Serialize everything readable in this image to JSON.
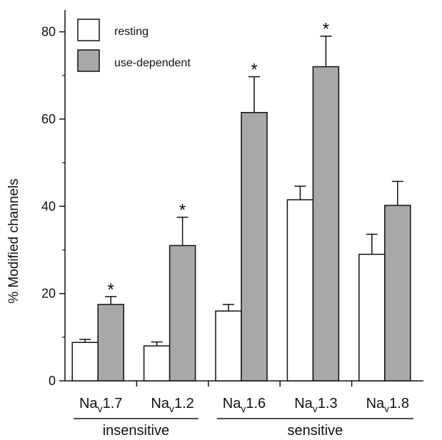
{
  "chart_data": {
    "type": "bar",
    "ylabel": "% Modified channels",
    "ylim": [
      0,
      85
    ],
    "yticks": [
      0,
      20,
      40,
      60,
      80
    ],
    "categories": [
      {
        "main": "Na",
        "sub": "v",
        "rest": "1.7"
      },
      {
        "main": "Na",
        "sub": "v",
        "rest": "1.2"
      },
      {
        "main": "Na",
        "sub": "v",
        "rest": "1.6"
      },
      {
        "main": "Na",
        "sub": "v",
        "rest": "1.3"
      },
      {
        "main": "Na",
        "sub": "v",
        "rest": "1.8"
      }
    ],
    "series": [
      {
        "name": "resting",
        "color": "#ffffff",
        "values": [
          8.8,
          8.0,
          16.0,
          41.5,
          29.0
        ],
        "errors": [
          0.7,
          0.9,
          1.5,
          3.1,
          4.6
        ],
        "significant": [
          false,
          false,
          false,
          false,
          false
        ]
      },
      {
        "name": "use-dependent",
        "color": "#a8a8a8",
        "values": [
          17.5,
          31.0,
          61.5,
          72.0,
          40.2
        ],
        "errors": [
          1.8,
          6.5,
          8.2,
          7.0,
          5.5
        ],
        "significant": [
          true,
          true,
          true,
          true,
          false
        ]
      }
    ],
    "significance_marker": "*",
    "groups": [
      {
        "label": "insensitive",
        "categories": [
          0,
          1
        ]
      },
      {
        "label": "sensitive",
        "categories": [
          2,
          3,
          4
        ]
      }
    ],
    "legend_position": "top-left"
  }
}
